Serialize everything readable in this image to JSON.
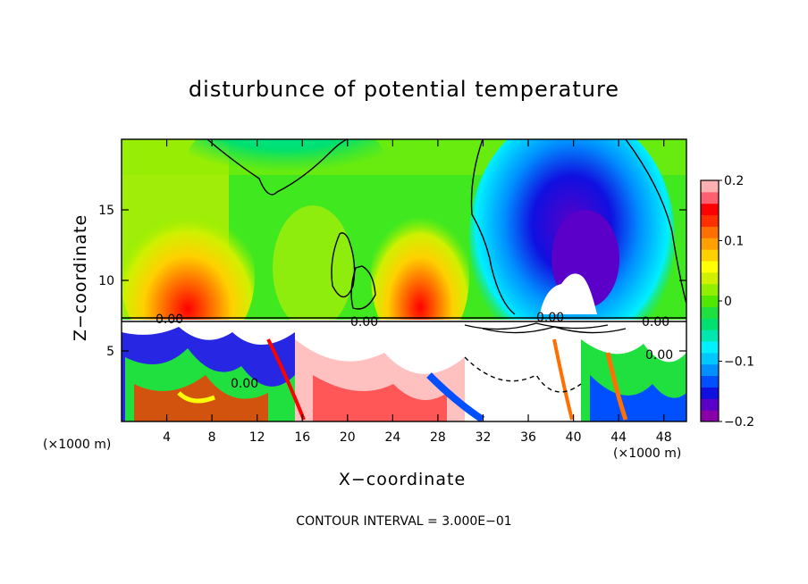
{
  "chart_data": {
    "type": "heatmap",
    "title": "disturbunce of potential temperature",
    "xlabel": "X−coordinate",
    "ylabel": "Z−coordinate",
    "x_unit_left": "(×1000 m)",
    "x_unit_right": "(×1000 m)",
    "xlim": [
      0,
      50
    ],
    "ylim": [
      0,
      20
    ],
    "x_ticks": [
      4,
      8,
      12,
      16,
      20,
      24,
      28,
      32,
      36,
      40,
      44,
      48
    ],
    "x_tick_labels": [
      "4",
      "8",
      "12",
      "16",
      "20",
      "24",
      "28",
      "32",
      "36",
      "40",
      "44",
      "48"
    ],
    "y_ticks": [
      5,
      10,
      15
    ],
    "y_tick_labels": [
      "5",
      "10",
      "15"
    ],
    "colorbar": {
      "range": [
        -0.2,
        0.2
      ],
      "ticks": [
        0.2,
        0.1,
        0,
        -0.1,
        -0.2
      ],
      "tick_labels": [
        "0.2",
        "0.1",
        "0",
        "−0.1",
        "−0.2"
      ],
      "colors": [
        "#8a00a8",
        "#5a00c8",
        "#1010e0",
        "#0050ff",
        "#0090ff",
        "#00c8ff",
        "#00f0ff",
        "#00e8b0",
        "#00e070",
        "#20e040",
        "#50e800",
        "#90f000",
        "#d0f000",
        "#ffff00",
        "#ffd000",
        "#ffa000",
        "#ff7000",
        "#ff3000",
        "#ff0000",
        "#ff6070",
        "#ffb0b0"
      ]
    },
    "contour_labels": [
      "0.00",
      "0.00",
      "0.00",
      "0.00",
      "0.00",
      "0.00"
    ],
    "contour_interval_text": "CONTOUR INTERVAL = 3.000E−01"
  }
}
